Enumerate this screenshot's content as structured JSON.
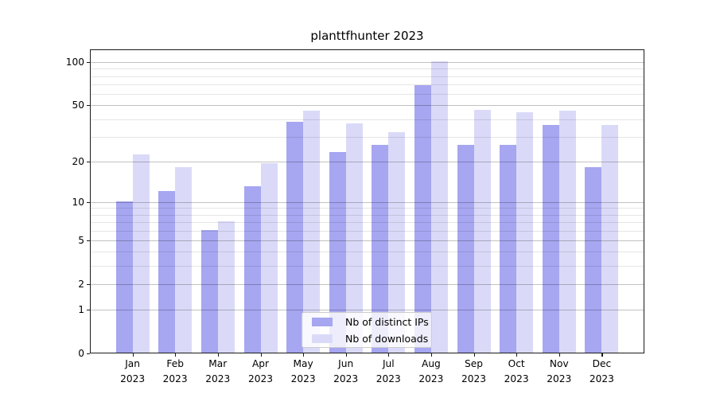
{
  "chart_data": {
    "type": "bar",
    "title": "planttfhunter 2023",
    "categories": [
      "Jan",
      "Feb",
      "Mar",
      "Apr",
      "May",
      "Jun",
      "Jul",
      "Aug",
      "Sep",
      "Oct",
      "Nov",
      "Dec"
    ],
    "year": "2023",
    "series": [
      {
        "name": "Nb of distinct IPs",
        "color": "#a6a6f1",
        "values": [
          10,
          12,
          6,
          13,
          38,
          23,
          26,
          68,
          26,
          26,
          36,
          18
        ]
      },
      {
        "name": "Nb of downloads",
        "color": "#dadaf8",
        "values": [
          22,
          18,
          7,
          19,
          45,
          37,
          32,
          100,
          46,
          44,
          45,
          36
        ]
      }
    ],
    "y_axis": {
      "scale": "log10(1+v)",
      "ticks": [
        0,
        1,
        2,
        5,
        10,
        20,
        50,
        100
      ],
      "minor_gridlines": [
        3,
        4,
        6,
        7,
        8,
        9,
        30,
        40,
        60,
        70,
        80,
        90
      ],
      "top_value": 121
    },
    "legend": {
      "position": "bottom-center",
      "frame": true
    },
    "grid": "horizontal, drawn over bars"
  }
}
